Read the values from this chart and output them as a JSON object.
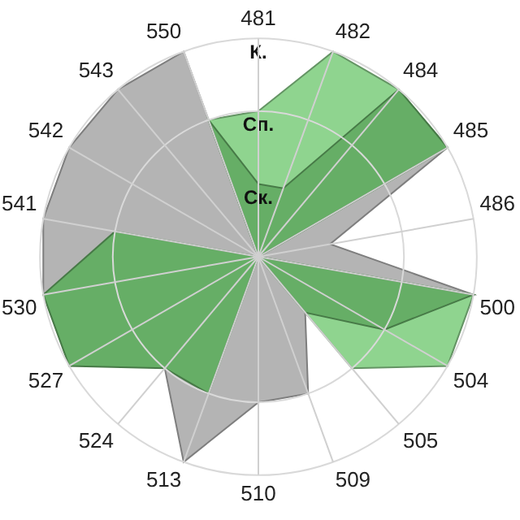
{
  "chart_data": {
    "type": "radar",
    "categories": [
      "481",
      "482",
      "484",
      "485",
      "486",
      "500",
      "504",
      "505",
      "509",
      "510",
      "513",
      "524",
      "527",
      "530",
      "541",
      "542",
      "543",
      "550"
    ],
    "ylim": [
      0,
      3
    ],
    "yticks": [
      {
        "value": 1,
        "label": "Ск."
      },
      {
        "value": 2,
        "label": "Сп."
      },
      {
        "value": 3,
        "label": "К."
      }
    ],
    "grid": true,
    "legend": false,
    "series": [
      {
        "color": "#b4b4b4",
        "values": [
          0,
          null,
          null,
          3,
          1,
          3,
          null,
          1,
          2,
          2,
          3,
          2,
          null,
          3,
          3,
          3,
          3,
          3
        ]
      },
      {
        "color": "#8fd48f",
        "values": [
          2,
          3,
          3,
          3,
          0,
          3,
          3,
          2,
          0,
          null,
          null,
          null,
          null,
          null,
          null,
          null,
          null,
          2
        ]
      },
      {
        "color": "#66ae66",
        "values": [
          1,
          1,
          3,
          3,
          0,
          3,
          2,
          1,
          0,
          0,
          2,
          2,
          3,
          3,
          2,
          0,
          0,
          2
        ]
      }
    ]
  }
}
